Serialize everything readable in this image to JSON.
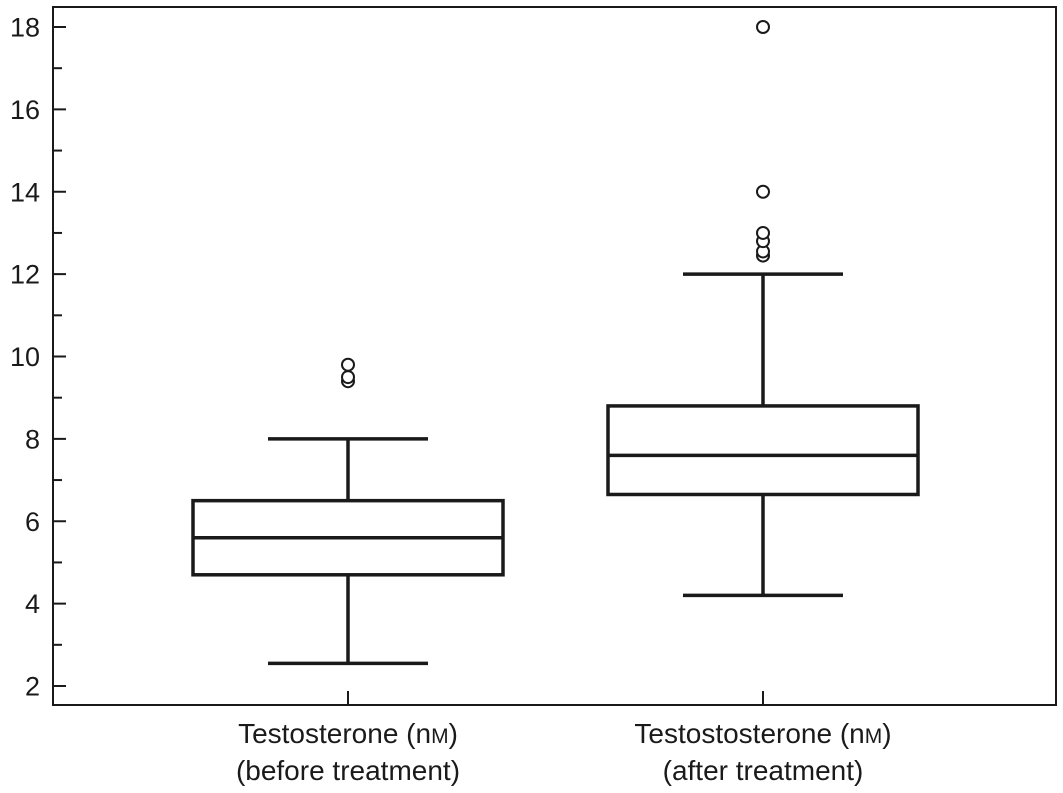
{
  "chart_data": {
    "type": "box",
    "title": "",
    "xlabel": "",
    "ylabel": "",
    "ylim": [
      1.6,
      18.5
    ],
    "yticks": [
      2,
      4,
      6,
      8,
      10,
      12,
      14,
      16,
      18
    ],
    "y_minor_step": 1,
    "grid": false,
    "legend": "none",
    "colors": {
      "line": "#1a1a1a",
      "background": "#ffffff"
    },
    "categories": [
      {
        "label_line1_prefix": "Testosterone (n",
        "label_line1_unit": "M",
        "label_line1_suffix": ")",
        "label_line2": "(before treatment)",
        "whisker_low": 2.55,
        "q1": 4.7,
        "median": 5.6,
        "q3": 6.5,
        "whisker_high": 8.0,
        "outliers": [
          9.4,
          9.5,
          9.8
        ]
      },
      {
        "label_line1_prefix": "Testostosterone (n",
        "label_line1_unit": "M",
        "label_line1_suffix": ")",
        "label_line2": "(after treatment)",
        "whisker_low": 4.2,
        "q1": 6.65,
        "median": 7.6,
        "q3": 8.8,
        "whisker_high": 12.0,
        "outliers": [
          12.45,
          12.55,
          12.8,
          13.0,
          14.0,
          18.0
        ]
      }
    ]
  }
}
